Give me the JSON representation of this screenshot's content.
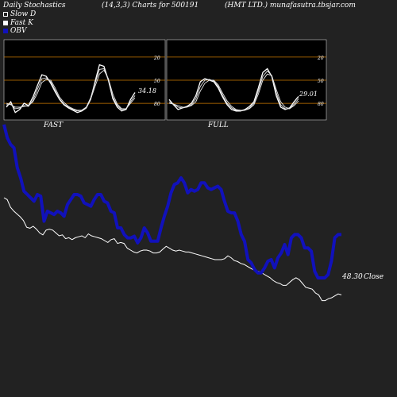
{
  "header": {
    "left": "Daily Stochastics",
    "middle": "(14,3,3) Charts for 500191",
    "right": "(HMT LTD.) munafasutra.tbsjar.com"
  },
  "legend": [
    {
      "label": "Slow  D",
      "color": "#ffffff",
      "style": "outline"
    },
    {
      "label": "Fast K",
      "color": "#ffffff",
      "style": "filled"
    },
    {
      "label": "OBV",
      "color": "#0000cc",
      "style": "filled"
    }
  ],
  "colors": {
    "background": "#222222",
    "panel": "#000000",
    "orange": "#cc7a00",
    "obv": "#1111bb",
    "price": "#ffffff"
  },
  "chart_data": [
    {
      "type": "line",
      "panel": "FAST",
      "ylim": [
        0,
        100
      ],
      "grid_levels": [
        20,
        50,
        80
      ],
      "tick_labels": [
        "80",
        "50",
        "20"
      ],
      "value_label": "34.18",
      "series": [
        {
          "name": "Fast K",
          "values": [
            15,
            22,
            8,
            12,
            20,
            17,
            28,
            43,
            57,
            55,
            46,
            35,
            25,
            18,
            14,
            11,
            8,
            10,
            14,
            25,
            48,
            70,
            68,
            50,
            26,
            15,
            10,
            12,
            25,
            34
          ]
        },
        {
          "name": "Slow D",
          "values": [
            18,
            19,
            13,
            14,
            17,
            16,
            24,
            38,
            52,
            53,
            48,
            37,
            26,
            19,
            15,
            12,
            10,
            11,
            15,
            27,
            46,
            64,
            65,
            50,
            28,
            17,
            12,
            13,
            22,
            30
          ]
        },
        {
          "name": "Slow D",
          "values": [
            20,
            18,
            15,
            15,
            16,
            17,
            22,
            33,
            47,
            51,
            50,
            40,
            28,
            21,
            16,
            13,
            11,
            11,
            14,
            25,
            42,
            58,
            63,
            52,
            32,
            19,
            13,
            13,
            20,
            27
          ]
        }
      ]
    },
    {
      "type": "line",
      "panel": "FULL",
      "ylim": [
        0,
        100
      ],
      "grid_levels": [
        20,
        50,
        80
      ],
      "tick_labels": [
        "80",
        "50",
        "20"
      ],
      "value_label": "29.01",
      "series": [
        {
          "name": "Fast K",
          "values": [
            25,
            18,
            12,
            14,
            16,
            20,
            30,
            48,
            52,
            50,
            48,
            40,
            28,
            18,
            12,
            10,
            10,
            12,
            16,
            22,
            40,
            60,
            65,
            55,
            30,
            15,
            12,
            14,
            22,
            29
          ]
        },
        {
          "name": "Slow D",
          "values": [
            22,
            19,
            15,
            14,
            15,
            18,
            26,
            42,
            50,
            51,
            49,
            42,
            30,
            20,
            14,
            11,
            10,
            11,
            14,
            20,
            36,
            55,
            62,
            56,
            34,
            18,
            13,
            13,
            19,
            26
          ]
        },
        {
          "name": "Slow D",
          "values": [
            20,
            19,
            17,
            15,
            15,
            17,
            22,
            36,
            46,
            50,
            50,
            44,
            33,
            23,
            16,
            12,
            11,
            11,
            13,
            18,
            32,
            50,
            58,
            56,
            38,
            22,
            15,
            13,
            17,
            23
          ]
        }
      ]
    },
    {
      "type": "line",
      "panel": "OBV and price",
      "close_label": "48.30",
      "close_word": "Close",
      "series": [
        {
          "name": "OBV",
          "values": [
            92,
            84,
            80,
            78,
            66,
            60,
            52,
            50,
            48,
            46,
            50,
            49,
            34,
            40,
            39,
            38,
            40,
            39,
            37,
            44,
            47,
            50,
            50,
            49,
            45,
            44,
            43,
            47,
            50,
            50,
            46,
            45,
            40,
            39,
            30,
            30,
            26,
            24,
            24,
            25,
            21,
            24,
            30,
            27,
            22,
            22,
            22,
            30,
            37,
            43,
            51,
            56,
            57,
            60,
            57,
            51,
            53,
            52,
            53,
            57,
            57,
            54,
            53,
            54,
            55,
            53,
            46,
            40,
            39,
            39,
            34,
            26,
            22,
            11,
            9,
            5,
            3,
            3,
            6,
            10,
            11,
            6,
            12,
            15,
            20,
            14,
            24,
            26,
            26,
            24,
            18,
            18,
            16,
            4,
            0,
            0,
            0,
            2,
            10,
            24,
            26,
            26
          ]
        },
        {
          "name": "Price",
          "values": [
            50,
            48,
            40,
            36,
            33,
            30,
            26,
            19,
            18,
            20,
            17,
            13,
            11,
            16,
            17,
            16,
            13,
            10,
            11,
            7,
            8,
            6,
            8,
            9,
            10,
            8,
            12,
            10,
            9,
            8,
            7,
            5,
            3,
            6,
            7,
            2,
            3,
            2,
            -3,
            -5,
            -7,
            -8,
            -6,
            -5,
            -5,
            -6,
            -8,
            -8,
            -7,
            -4,
            -1,
            -3,
            -5,
            -6,
            -5,
            -6,
            -7,
            -7,
            -8,
            -9,
            -10,
            -11,
            -12,
            -13,
            -14,
            -15,
            -15,
            -15,
            -14,
            -11,
            -13,
            -16,
            -17,
            -19,
            -20,
            -22,
            -24,
            -26,
            -27,
            -28,
            -30,
            -32,
            -34,
            -37,
            -39,
            -40,
            -42,
            -42,
            -39,
            -36,
            -34,
            -36,
            -40,
            -44,
            -45,
            -46,
            -50,
            -52,
            -58,
            -58,
            -56,
            -55,
            -53,
            -51,
            -52
          ]
        }
      ]
    }
  ],
  "panel_labels": {
    "fast": "FAST",
    "full": "FULL"
  }
}
